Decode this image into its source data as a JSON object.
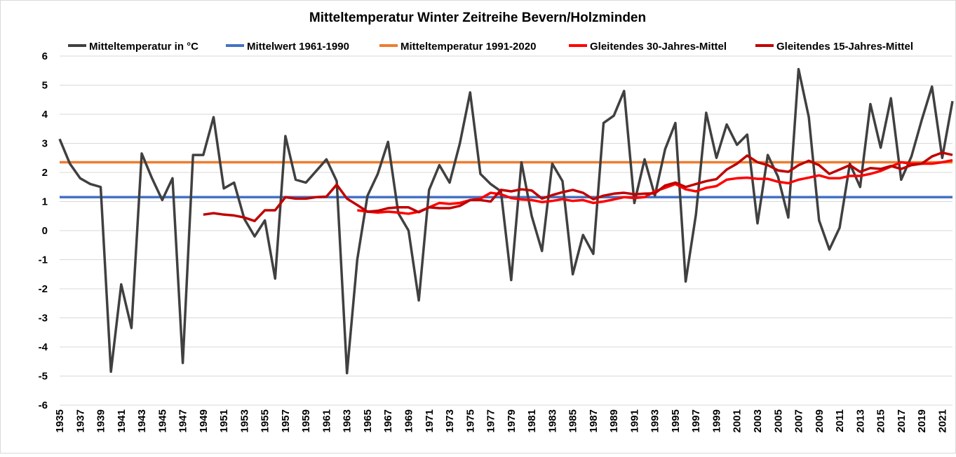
{
  "chart_data": {
    "type": "line",
    "title": "Mitteltemperatur Winter Zeitreihe Bevern/Holzminden",
    "xlabel": "",
    "ylabel": "",
    "xlim": [
      1935,
      2022
    ],
    "ylim": [
      -6,
      6
    ],
    "yticks": [
      6,
      5,
      4,
      3,
      2,
      1,
      0,
      -1,
      -2,
      -3,
      -4,
      -5,
      -6
    ],
    "xticks": [
      1935,
      1937,
      1939,
      1941,
      1943,
      1945,
      1947,
      1949,
      1951,
      1953,
      1955,
      1957,
      1959,
      1961,
      1963,
      1965,
      1967,
      1969,
      1971,
      1973,
      1975,
      1977,
      1979,
      1981,
      1983,
      1985,
      1987,
      1989,
      1991,
      1993,
      1995,
      1997,
      1999,
      2001,
      2003,
      2005,
      2007,
      2009,
      2011,
      2013,
      2015,
      2017,
      2019,
      2021
    ],
    "grid": true,
    "legend_position": "top",
    "series": [
      {
        "name": "Mitteltemperatur in °C",
        "color": "#404040",
        "start": 1935,
        "values": [
          3.15,
          2.3,
          1.8,
          1.6,
          1.5,
          -4.85,
          -1.85,
          -3.35,
          2.65,
          1.8,
          1.05,
          1.8,
          -4.55,
          2.6,
          2.6,
          3.9,
          1.45,
          1.65,
          0.4,
          -0.2,
          0.35,
          -1.65,
          3.25,
          1.75,
          1.65,
          2.05,
          2.45,
          1.7,
          -4.9,
          -1.0,
          1.2,
          1.95,
          3.05,
          0.6,
          0.0,
          -2.4,
          1.4,
          2.25,
          1.65,
          3.0,
          4.75,
          1.95,
          1.6,
          1.35,
          -1.7,
          2.35,
          0.5,
          -0.7,
          2.3,
          1.7,
          -1.5,
          -0.15,
          -0.8,
          3.7,
          3.95,
          4.8,
          0.95,
          2.45,
          1.2,
          2.8,
          3.7,
          -1.75,
          0.55,
          4.05,
          2.5,
          3.65,
          2.95,
          3.3,
          0.25,
          2.6,
          1.85,
          0.45,
          5.55,
          3.9,
          0.35,
          -0.65,
          0.1,
          2.3,
          1.5,
          4.35,
          2.85,
          4.55,
          1.75,
          2.55,
          3.8,
          4.95,
          2.5,
          4.45
        ]
      },
      {
        "name": "Mittelwert 1961-1990",
        "color": "#4472C4",
        "constant": 1.15
      },
      {
        "name": "Mitteltemperatur 1991-2020",
        "color": "#ED7D31",
        "constant": 2.35
      },
      {
        "name": "Gleitendes 30-Jahres-Mittel",
        "color": "#FF0000",
        "start": 1964,
        "values": [
          0.7,
          0.65,
          0.62,
          0.65,
          0.62,
          0.58,
          0.65,
          0.8,
          0.95,
          0.92,
          0.95,
          1.05,
          1.1,
          1.3,
          1.25,
          1.12,
          1.07,
          1.05,
          0.98,
          1.02,
          1.08,
          1.02,
          1.05,
          0.95,
          1.0,
          1.07,
          1.15,
          1.12,
          1.15,
          1.35,
          1.47,
          1.6,
          1.42,
          1.35,
          1.47,
          1.53,
          1.75,
          1.8,
          1.82,
          1.78,
          1.78,
          1.68,
          1.63,
          1.75,
          1.82,
          1.9,
          1.8,
          1.8,
          1.88,
          1.88,
          1.95,
          2.05,
          2.2,
          2.35,
          2.3,
          2.3,
          2.3,
          2.35,
          2.42
        ]
      },
      {
        "name": "Gleitendes 15-Jahres-Mittel",
        "color": "#C00000",
        "start": 1949,
        "values": [
          0.55,
          0.6,
          0.55,
          0.52,
          0.45,
          0.33,
          0.7,
          0.7,
          1.15,
          1.1,
          1.1,
          1.15,
          1.17,
          1.58,
          1.1,
          0.88,
          0.65,
          0.68,
          0.77,
          0.8,
          0.8,
          0.63,
          0.8,
          0.77,
          0.77,
          0.85,
          1.05,
          1.05,
          1.0,
          1.4,
          1.35,
          1.42,
          1.38,
          1.1,
          1.22,
          1.32,
          1.4,
          1.3,
          1.08,
          1.2,
          1.27,
          1.3,
          1.25,
          1.27,
          1.28,
          1.55,
          1.65,
          1.5,
          1.6,
          1.7,
          1.77,
          2.1,
          2.3,
          2.58,
          2.35,
          2.25,
          2.07,
          2.02,
          2.25,
          2.4,
          2.25,
          1.95,
          2.1,
          2.25,
          2.02,
          2.15,
          2.12,
          2.22,
          2.12,
          2.25,
          2.3,
          2.55,
          2.68,
          2.6
        ]
      }
    ]
  }
}
